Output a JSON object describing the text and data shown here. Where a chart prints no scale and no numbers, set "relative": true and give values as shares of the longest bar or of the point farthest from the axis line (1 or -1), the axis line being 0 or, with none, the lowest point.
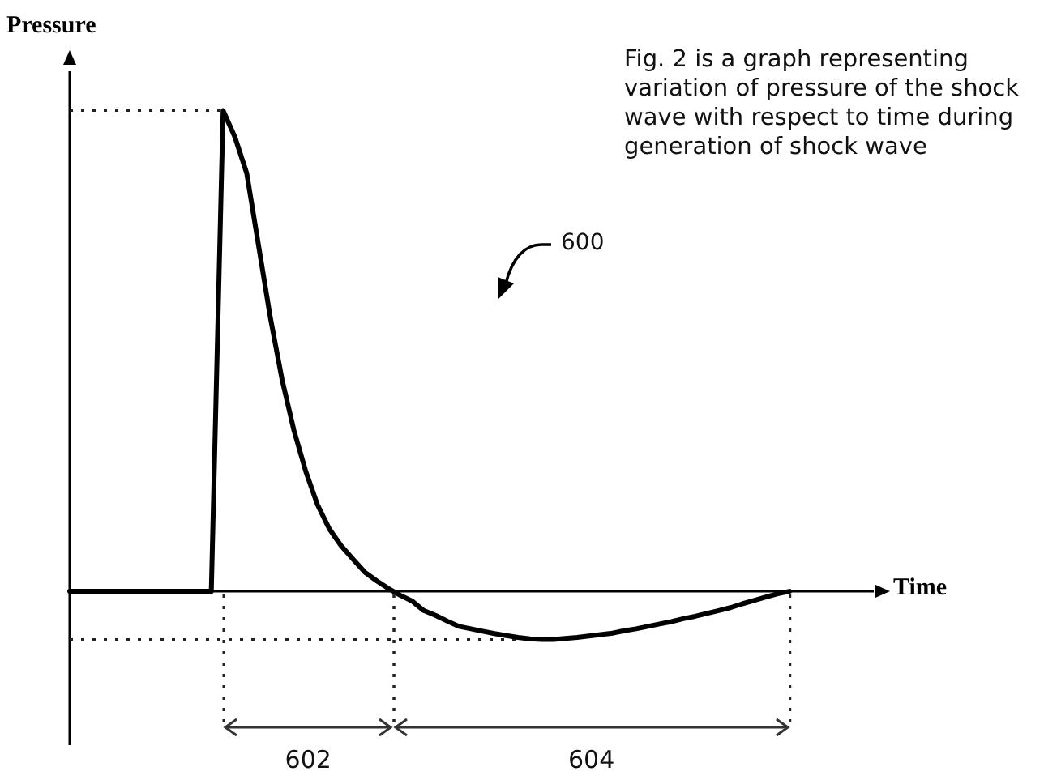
{
  "chart_data": {
    "type": "line",
    "relative": true,
    "xlabel": "Time",
    "ylabel": "Pressure",
    "marker": "none",
    "line_style": "solid",
    "categories": [
      null,
      null,
      null,
      null,
      null,
      null,
      null,
      null,
      null,
      null,
      null,
      null,
      null,
      null,
      null,
      null,
      null,
      null,
      null,
      null,
      null,
      null,
      null,
      null,
      null,
      null,
      null,
      null,
      null,
      null,
      null,
      null,
      null,
      null,
      null,
      null,
      null,
      null,
      null,
      null,
      null,
      null,
      null,
      null,
      null,
      null,
      null,
      null,
      null,
      null,
      null,
      null,
      null,
      null,
      null,
      null,
      null,
      null,
      null,
      null,
      null,
      null
    ],
    "series": [
      {
        "color": "#000000",
        "values": [
          0,
          0,
          0,
          0,
          0,
          0,
          0,
          0,
          0,
          0,
          0,
          0,
          0,
          1,
          0.945,
          0.87,
          0.72,
          0.57,
          0.44,
          0.335,
          0.25,
          0.18,
          0.13,
          0.095,
          0.067,
          0.04,
          0.022,
          0.006,
          -0.008,
          -0.02,
          -0.04,
          -0.05,
          -0.062,
          -0.073,
          -0.078,
          -0.083,
          -0.088,
          -0.092,
          -0.096,
          -0.099,
          -0.1,
          -0.1,
          -0.098,
          -0.096,
          -0.093,
          -0.09,
          -0.087,
          -0.082,
          -0.078,
          -0.073,
          -0.068,
          -0.063,
          -0.057,
          -0.052,
          -0.046,
          -0.04,
          -0.034,
          -0.026,
          -0.019,
          -0.012,
          -0.005,
          0
        ]
      }
    ],
    "ref_lines": [
      {
        "axis": "y",
        "value": 1,
        "line_style": "dotted"
      },
      {
        "axis": "y",
        "value": -0.1,
        "line_style": "dotted"
      }
    ],
    "annotations": [
      "Fig. 2 is a graph representing variation of pressure of the shock wave with respect to time during generation of shock wave",
      "600",
      "602",
      "604"
    ]
  }
}
